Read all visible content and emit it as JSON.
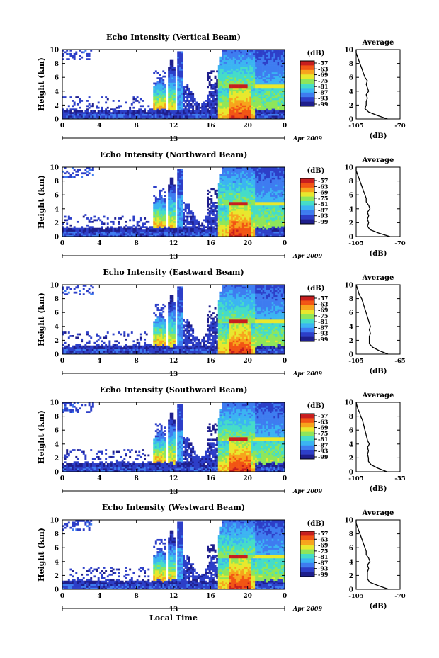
{
  "chart_data": {
    "type": "heatmap",
    "panels": [
      {
        "title": "Echo Intensity (Vertical Beam)",
        "avg_title": "Average",
        "avg_xticks": [
          "-105",
          "-70"
        ],
        "avg_profile": [
          [
            0,
            -80
          ],
          [
            0.5,
            -88
          ],
          [
            1,
            -95
          ],
          [
            1.5,
            -98
          ],
          [
            2,
            -97
          ],
          [
            2.5,
            -97
          ],
          [
            3,
            -96
          ],
          [
            3.5,
            -97
          ],
          [
            4,
            -95
          ],
          [
            4.5,
            -96
          ],
          [
            5,
            -97
          ],
          [
            5.5,
            -96
          ],
          [
            6,
            -98
          ],
          [
            6.5,
            -99
          ],
          [
            7,
            -100
          ],
          [
            7.5,
            -101
          ],
          [
            8,
            -102
          ],
          [
            8.5,
            -103
          ],
          [
            9,
            -104
          ],
          [
            9.5,
            -105
          ],
          [
            10,
            -105
          ]
        ]
      },
      {
        "title": "Echo Intensity (Northward Beam)",
        "avg_title": "Average",
        "avg_xticks": [
          "-105",
          "-70"
        ],
        "avg_profile": [
          [
            0,
            -78
          ],
          [
            0.5,
            -87
          ],
          [
            1,
            -94
          ],
          [
            1.5,
            -96
          ],
          [
            2,
            -95
          ],
          [
            2.5,
            -96
          ],
          [
            3,
            -95
          ],
          [
            3.5,
            -96
          ],
          [
            4,
            -94
          ],
          [
            4.5,
            -95
          ],
          [
            5,
            -97
          ],
          [
            5.5,
            -97
          ],
          [
            6,
            -98
          ],
          [
            6.5,
            -99
          ],
          [
            7,
            -100
          ],
          [
            7.5,
            -101
          ],
          [
            8,
            -102
          ],
          [
            8.5,
            -103
          ],
          [
            9,
            -104
          ],
          [
            9.5,
            -105
          ],
          [
            10,
            -105
          ]
        ]
      },
      {
        "title": "Echo Intensity (Eastward Beam)",
        "avg_title": "Average",
        "avg_xticks": [
          "-105",
          "-65"
        ],
        "avg_profile": [
          [
            0,
            -76
          ],
          [
            0.5,
            -84
          ],
          [
            1,
            -90
          ],
          [
            1.5,
            -93
          ],
          [
            2,
            -93
          ],
          [
            2.5,
            -93
          ],
          [
            3,
            -92
          ],
          [
            3.5,
            -93
          ],
          [
            4,
            -92
          ],
          [
            4.5,
            -93
          ],
          [
            5,
            -94
          ],
          [
            5.5,
            -95
          ],
          [
            6,
            -96
          ],
          [
            6.5,
            -97
          ],
          [
            7,
            -98
          ],
          [
            7.5,
            -99
          ],
          [
            8,
            -100
          ],
          [
            8.5,
            -102
          ],
          [
            9,
            -103
          ],
          [
            9.5,
            -104
          ],
          [
            10,
            -105
          ]
        ]
      },
      {
        "title": "Echo Intensity (Southward Beam)",
        "avg_title": "Average",
        "avg_xticks": [
          "-105",
          "-55"
        ],
        "avg_profile": [
          [
            0,
            -70
          ],
          [
            0.5,
            -80
          ],
          [
            1,
            -88
          ],
          [
            1.5,
            -91
          ],
          [
            2,
            -91
          ],
          [
            2.5,
            -92
          ],
          [
            3,
            -91
          ],
          [
            3.5,
            -92
          ],
          [
            4,
            -90
          ],
          [
            4.5,
            -92
          ],
          [
            5,
            -93
          ],
          [
            5.5,
            -94
          ],
          [
            6,
            -95
          ],
          [
            6.5,
            -96
          ],
          [
            7,
            -97
          ],
          [
            7.5,
            -98
          ],
          [
            8,
            -100
          ],
          [
            8.5,
            -101
          ],
          [
            9,
            -103
          ],
          [
            9.5,
            -104
          ],
          [
            10,
            -105
          ]
        ]
      },
      {
        "title": "Echo Intensity (Westward Beam)",
        "avg_title": "Average",
        "avg_xticks": [
          "-105",
          "-70"
        ],
        "avg_profile": [
          [
            0,
            -79
          ],
          [
            0.5,
            -87
          ],
          [
            1,
            -94
          ],
          [
            1.5,
            -96
          ],
          [
            2,
            -96
          ],
          [
            2.5,
            -96
          ],
          [
            3,
            -95
          ],
          [
            3.5,
            -96
          ],
          [
            4,
            -94
          ],
          [
            4.5,
            -95
          ],
          [
            5,
            -97
          ],
          [
            5.5,
            -97
          ],
          [
            6,
            -98
          ],
          [
            6.5,
            -99
          ],
          [
            7,
            -100
          ],
          [
            7.5,
            -101
          ],
          [
            8,
            -102
          ],
          [
            8.5,
            -103
          ],
          [
            9,
            -104
          ],
          [
            9.5,
            -105
          ],
          [
            10,
            -105
          ]
        ]
      }
    ],
    "ylabel": "Height (km)",
    "yticks": [
      "0",
      "2",
      "4",
      "6",
      "8",
      "10"
    ],
    "ylim": [
      0,
      10
    ],
    "xticks": [
      "0",
      "4",
      "8",
      "12",
      "16",
      "20",
      "0"
    ],
    "xlim": [
      0,
      24
    ],
    "date_label": "13",
    "month_label": "Apr 2009",
    "xlabel": "Local Time",
    "colorbar_unit": "(dB)",
    "colorbar_ticks": [
      "-57",
      "-63",
      "-69",
      "-75",
      "-81",
      "-87",
      "-93",
      "-99"
    ],
    "colorbar_range": [
      -99,
      -57
    ],
    "avg_xlabel": "(dB)",
    "avg_yticks": [
      "0",
      "2",
      "4",
      "6",
      "8",
      "10"
    ],
    "colormap": [
      "#1e1e8c",
      "#2d3fc8",
      "#3e7cf0",
      "#3bb4f2",
      "#45dcc8",
      "#8ee65a",
      "#e8e82d",
      "#f7a41c",
      "#f25514",
      "#c81e1e"
    ],
    "echo_features": [
      {
        "t0": 0,
        "t1": 9.7,
        "top_km": 1.2,
        "peak_db": -90,
        "kind": "low_layer"
      },
      {
        "t0": 9.8,
        "t1": 11.2,
        "top_km": 6.0,
        "peak_db": -60,
        "kind": "convective"
      },
      {
        "t0": 11.4,
        "t1": 12.1,
        "top_km": 8.8,
        "peak_db": -66,
        "kind": "convective"
      },
      {
        "t0": 12.4,
        "t1": 12.9,
        "top_km": 9.7,
        "peak_db": -84,
        "kind": "column"
      },
      {
        "t0": 12.9,
        "t1": 16.8,
        "top_km": 4.0,
        "peak_db": -93,
        "kind": "stratiform_low"
      },
      {
        "t0": 16.8,
        "t1": 20.8,
        "top_km": 10.0,
        "peak_db": -57,
        "kind": "convective_bright_band"
      },
      {
        "t0": 20.8,
        "t1": 24,
        "top_km": 10.0,
        "peak_db": -75,
        "kind": "stratiform"
      }
    ]
  }
}
